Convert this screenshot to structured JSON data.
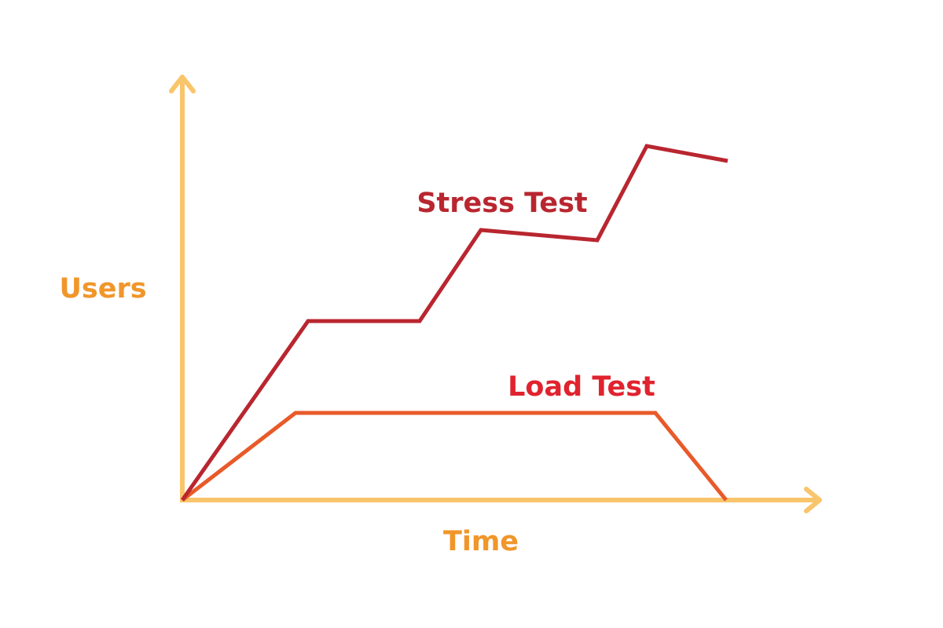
{
  "diagram": {
    "y_axis_label": "Users",
    "x_axis_label": "Time",
    "lines": [
      {
        "label": "Stress Test"
      },
      {
        "label": "Load Test"
      }
    ]
  }
}
